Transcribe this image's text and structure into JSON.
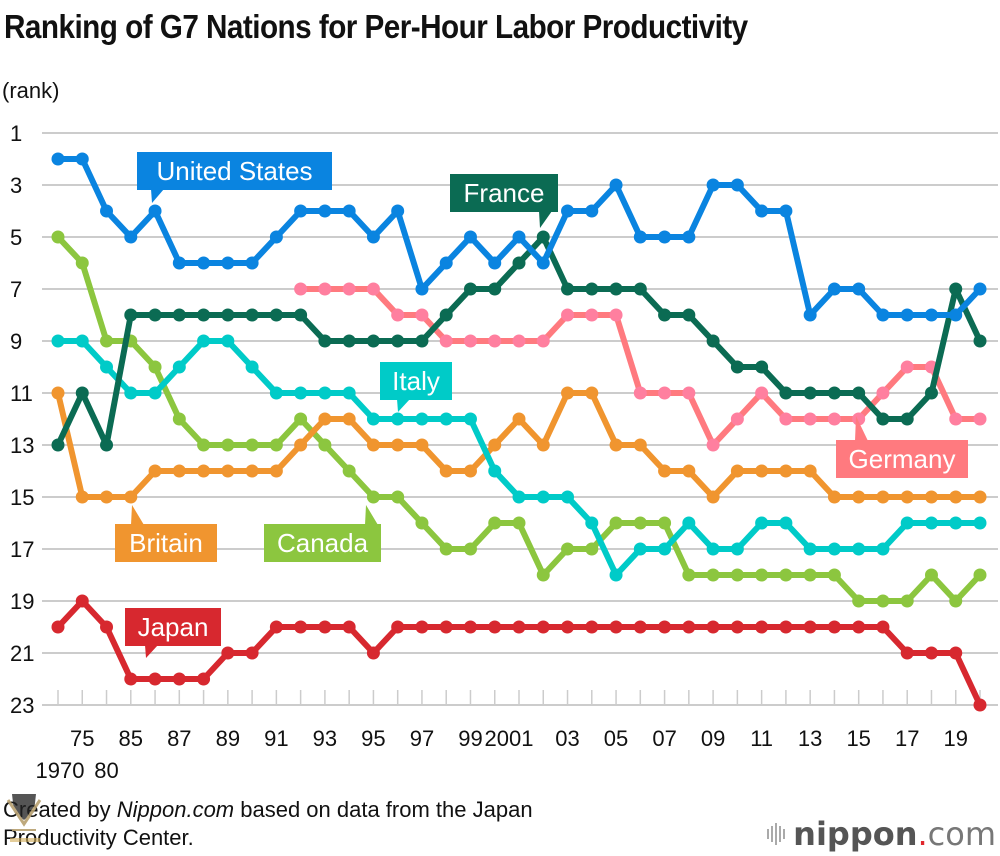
{
  "title": "Ranking of G7 Nations for Per-Hour Labor Productivity",
  "footer": {
    "prefix": "Created by ",
    "source_italic": "Nippon.com",
    "suffix": " based on data from the Japan Productivity Center."
  },
  "logo": {
    "name": "nippon",
    "dot": ".",
    "tld": "com"
  },
  "chart_data": {
    "type": "line",
    "title": "Ranking of G7 Nations for Per-Hour Labor Productivity",
    "ylabel": "(rank)",
    "xlabel": "",
    "ylim": [
      1,
      23
    ],
    "y_inverted": true,
    "y_ticks": [
      "1",
      "3",
      "5",
      "7",
      "9",
      "11",
      "13",
      "15",
      "17",
      "19",
      "21",
      "23"
    ],
    "grid": true,
    "x": [
      "1970",
      "1975",
      "1980",
      "1985",
      "1986",
      "1987",
      "1988",
      "1989",
      "1990",
      "1991",
      "1992",
      "1993",
      "1994",
      "1995",
      "1996",
      "1997",
      "1998",
      "1999",
      "2000",
      "2001",
      "2002",
      "2003",
      "2004",
      "2005",
      "2006",
      "2007",
      "2008",
      "2009",
      "2010",
      "2011",
      "2012",
      "2013",
      "2014",
      "2015",
      "2016",
      "2017",
      "2018",
      "2019",
      "2020"
    ],
    "x_tick_labels": [
      {
        "index": 0,
        "label": "1970",
        "row": 2
      },
      {
        "index": 1,
        "label": "75",
        "row": 1
      },
      {
        "index": 2,
        "label": "80",
        "row": 2
      },
      {
        "index": 3,
        "label": "85",
        "row": 1
      },
      {
        "index": 5,
        "label": "87",
        "row": 1
      },
      {
        "index": 7,
        "label": "89",
        "row": 1
      },
      {
        "index": 9,
        "label": "91",
        "row": 1
      },
      {
        "index": 11,
        "label": "93",
        "row": 1
      },
      {
        "index": 13,
        "label": "95",
        "row": 1
      },
      {
        "index": 15,
        "label": "97",
        "row": 1
      },
      {
        "index": 17,
        "label": "99",
        "row": 1
      },
      {
        "index": 19,
        "label": "2001",
        "row": 1
      },
      {
        "index": 21,
        "label": "03",
        "row": 1
      },
      {
        "index": 23,
        "label": "05",
        "row": 1
      },
      {
        "index": 25,
        "label": "07",
        "row": 1
      },
      {
        "index": 27,
        "label": "09",
        "row": 1
      },
      {
        "index": 29,
        "label": "11",
        "row": 1
      },
      {
        "index": 31,
        "label": "13",
        "row": 1
      },
      {
        "index": 33,
        "label": "15",
        "row": 1
      },
      {
        "index": 35,
        "label": "17",
        "row": 1
      },
      {
        "index": 37,
        "label": "19",
        "row": 1
      }
    ],
    "series": [
      {
        "name": "Japan",
        "color": "#d7282f",
        "label_anchor_index": 4,
        "values": [
          20,
          19,
          20,
          22,
          22,
          22,
          22,
          21,
          21,
          20,
          20,
          20,
          20,
          21,
          20,
          20,
          20,
          20,
          20,
          20,
          20,
          20,
          20,
          20,
          20,
          20,
          20,
          20,
          20,
          20,
          20,
          20,
          20,
          20,
          20,
          21,
          21,
          21,
          23
        ]
      },
      {
        "name": "Canada",
        "color": "#8cc63f",
        "label_anchor_index": 14,
        "values": [
          5,
          6,
          9,
          9,
          10,
          12,
          13,
          13,
          13,
          13,
          12,
          13,
          14,
          15,
          15,
          16,
          17,
          17,
          16,
          16,
          18,
          17,
          17,
          16,
          16,
          16,
          18,
          18,
          18,
          18,
          18,
          18,
          18,
          19,
          19,
          19,
          18,
          19,
          18
        ]
      },
      {
        "name": "Britain",
        "color": "#f0952f",
        "label_anchor_index": 3,
        "values": [
          11,
          15,
          15,
          15,
          14,
          14,
          14,
          14,
          14,
          14,
          13,
          12,
          12,
          13,
          13,
          13,
          14,
          14,
          13,
          12,
          13,
          11,
          11,
          13,
          13,
          14,
          14,
          15,
          14,
          14,
          14,
          14,
          15,
          15,
          15,
          15,
          15,
          15,
          15
        ]
      },
      {
        "name": "Italy",
        "color": "#00cbc8",
        "label_anchor_index": 14,
        "values": [
          9,
          9,
          10,
          11,
          11,
          10,
          9,
          9,
          10,
          11,
          11,
          11,
          11,
          12,
          12,
          12,
          12,
          12,
          14,
          15,
          15,
          15,
          16,
          18,
          17,
          17,
          16,
          17,
          17,
          16,
          16,
          17,
          17,
          17,
          17,
          16,
          16,
          16,
          16
        ]
      },
      {
        "name": "Germany",
        "color": "#ff7a7f",
        "marker": "#ff7f9f",
        "label_anchor_index": 33,
        "values": [
          null,
          null,
          null,
          null,
          null,
          null,
          null,
          null,
          null,
          null,
          7,
          7,
          7,
          7,
          8,
          8,
          9,
          9,
          9,
          9,
          9,
          8,
          8,
          8,
          11,
          11,
          11,
          13,
          12,
          11,
          12,
          12,
          12,
          12,
          11,
          10,
          10,
          12,
          12
        ]
      },
      {
        "name": "France",
        "color": "#0b6b53",
        "label_anchor_index": 20,
        "values": [
          13,
          11,
          13,
          8,
          8,
          8,
          8,
          8,
          8,
          8,
          8,
          9,
          9,
          9,
          9,
          9,
          8,
          7,
          7,
          6,
          5,
          7,
          7,
          7,
          7,
          8,
          8,
          9,
          10,
          10,
          11,
          11,
          11,
          11,
          12,
          12,
          11,
          7,
          9
        ]
      },
      {
        "name": "United States",
        "color": "#0a84e0",
        "label_anchor_index": 4,
        "values": [
          2,
          2,
          4,
          5,
          4,
          6,
          6,
          6,
          6,
          5,
          4,
          4,
          4,
          5,
          4,
          7,
          6,
          5,
          6,
          5,
          6,
          4,
          4,
          3,
          5,
          5,
          5,
          3,
          3,
          4,
          4,
          8,
          7,
          7,
          8,
          8,
          8,
          8,
          7
        ]
      }
    ]
  }
}
